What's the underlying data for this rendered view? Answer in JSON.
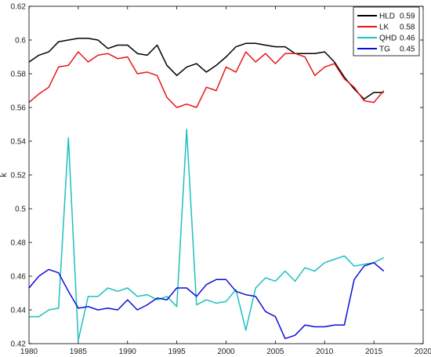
{
  "chart_data": {
    "type": "line",
    "title": "",
    "xlabel": "",
    "ylabel": "k",
    "xlim": [
      1980,
      2020
    ],
    "ylim": [
      0.42,
      0.62
    ],
    "xticks": [
      1980,
      1985,
      1990,
      1995,
      2000,
      2005,
      2010,
      2015,
      2020
    ],
    "yticks": [
      0.42,
      0.44,
      0.46,
      0.48,
      0.5,
      0.52,
      0.54,
      0.56,
      0.58,
      0.6,
      0.62
    ],
    "xtick_labels": [
      "1980",
      "1985",
      "1990",
      "1995",
      "2000",
      "2005",
      "2010",
      "2015",
      "2020"
    ],
    "ytick_labels": [
      "0.42",
      "0.44",
      "0.46",
      "0.48",
      "0.5",
      "0.52",
      "0.54",
      "0.56",
      "0.58",
      "0.6",
      "0.62"
    ],
    "grid": false,
    "legend_position": "top-right",
    "x": [
      1980,
      1981,
      1982,
      1983,
      1984,
      1985,
      1986,
      1987,
      1988,
      1989,
      1990,
      1991,
      1992,
      1993,
      1994,
      1995,
      1996,
      1997,
      1998,
      1999,
      2000,
      2001,
      2002,
      2003,
      2004,
      2005,
      2006,
      2007,
      2008,
      2009,
      2010,
      2011,
      2012,
      2013,
      2014,
      2015,
      2016
    ],
    "series": [
      {
        "name": "HLD",
        "legend_value": "0.59",
        "color": "#000000",
        "values": [
          0.587,
          0.591,
          0.593,
          0.599,
          0.6,
          0.601,
          0.601,
          0.6,
          0.595,
          0.597,
          0.597,
          0.592,
          0.591,
          0.597,
          0.585,
          0.579,
          0.584,
          0.586,
          0.581,
          0.585,
          0.59,
          0.596,
          0.598,
          0.598,
          0.597,
          0.596,
          0.596,
          0.592,
          0.592,
          0.592,
          0.593,
          0.587,
          0.578,
          0.571,
          0.565,
          0.569,
          0.569
        ]
      },
      {
        "name": "LK",
        "legend_value": "0.58",
        "color": "#e8151b",
        "values": [
          0.563,
          0.568,
          0.572,
          0.584,
          0.585,
          0.593,
          0.587,
          0.591,
          0.592,
          0.589,
          0.59,
          0.58,
          0.581,
          0.579,
          0.566,
          0.56,
          0.562,
          0.56,
          0.572,
          0.57,
          0.584,
          0.581,
          0.593,
          0.587,
          0.592,
          0.586,
          0.592,
          0.592,
          0.59,
          0.579,
          0.584,
          0.586,
          0.577,
          0.572,
          0.564,
          0.563,
          0.57
        ]
      },
      {
        "name": "QHD",
        "legend_value": "0.46",
        "color": "#1fbfbf",
        "values": [
          0.436,
          0.436,
          0.44,
          0.441,
          0.542,
          0.422,
          0.448,
          0.448,
          0.453,
          0.451,
          0.453,
          0.448,
          0.449,
          0.446,
          0.448,
          0.442,
          0.547,
          0.443,
          0.446,
          0.444,
          0.445,
          0.452,
          0.428,
          0.453,
          0.459,
          0.457,
          0.463,
          0.457,
          0.465,
          0.463,
          0.468,
          0.47,
          0.472,
          0.466,
          0.467,
          0.468,
          0.471
        ]
      },
      {
        "name": "TG",
        "legend_value": "0.45",
        "color": "#0d0dd9",
        "values": [
          0.453,
          0.46,
          0.464,
          0.462,
          0.451,
          0.441,
          0.442,
          0.44,
          0.441,
          0.44,
          0.446,
          0.44,
          0.443,
          0.447,
          0.446,
          0.453,
          0.453,
          0.448,
          0.455,
          0.458,
          0.458,
          0.451,
          0.449,
          0.448,
          0.439,
          0.436,
          0.423,
          0.425,
          0.431,
          0.43,
          0.43,
          0.431,
          0.431,
          0.458,
          0.466,
          0.468,
          0.463
        ]
      }
    ]
  }
}
